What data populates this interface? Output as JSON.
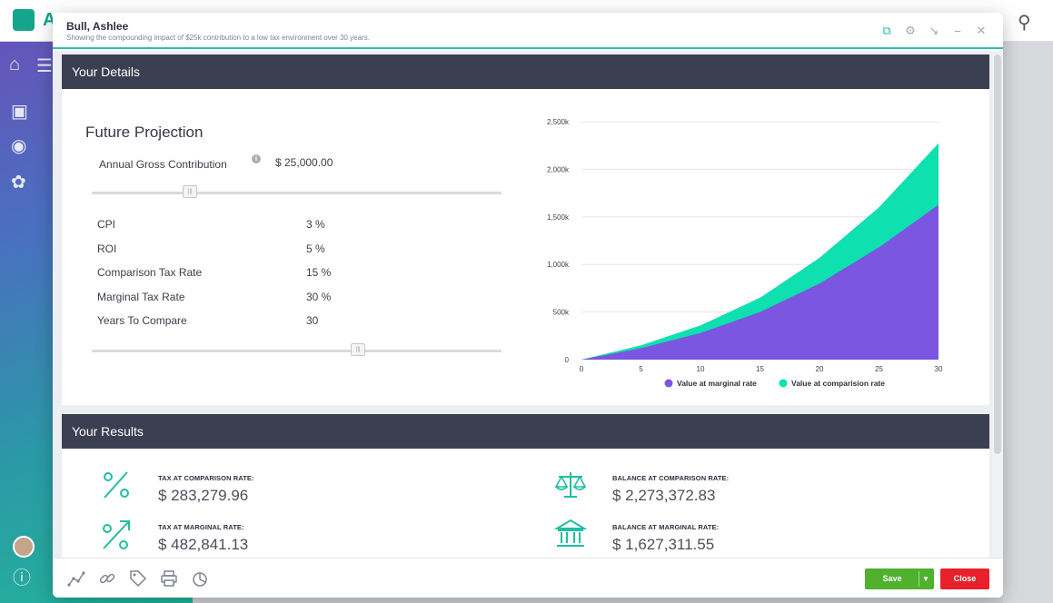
{
  "app": {
    "logo_text": "A"
  },
  "modal": {
    "title": "Bull, Ashlee",
    "subtitle": "Showing the compounding impact of $25k contribution to a low tax environment over 30 years."
  },
  "details": {
    "header": "Your Details",
    "section_title": "Future Projection",
    "agc_label": "Annual Gross Contribution",
    "agc_value": "$ 25,000.00",
    "agc_slider_fraction": 0.24,
    "params": [
      {
        "label": "CPI",
        "value": "3 %"
      },
      {
        "label": "ROI",
        "value": "5 %"
      },
      {
        "label": "Comparison Tax Rate",
        "value": "15 %"
      },
      {
        "label": "Marginal Tax Rate",
        "value": "30 %"
      },
      {
        "label": "Years To Compare",
        "value": "30"
      }
    ],
    "years_slider_fraction": 0.65
  },
  "chart_data": {
    "type": "area",
    "x": [
      0,
      5,
      10,
      15,
      20,
      25,
      30
    ],
    "xlim": [
      0,
      30
    ],
    "ylim": [
      0,
      2500000
    ],
    "y_ticks": [
      "0",
      "500k",
      "1,000k",
      "1,500k",
      "2,000k",
      "2,500k"
    ],
    "y_tick_values": [
      0,
      500000,
      1000000,
      1500000,
      2000000,
      2500000
    ],
    "x_ticks": [
      "0",
      "5",
      "10",
      "15",
      "20",
      "25",
      "30"
    ],
    "grid": true,
    "legend_position": "bottom",
    "series": [
      {
        "name": "Value at marginal rate",
        "color": "#7b56e0",
        "values": [
          0,
          120000,
          280000,
          500000,
          800000,
          1180000,
          1627311
        ]
      },
      {
        "name": "Value at comparision rate",
        "color": "#0fe0b0",
        "values": [
          0,
          150000,
          360000,
          650000,
          1070000,
          1600000,
          2273372
        ]
      }
    ]
  },
  "results": {
    "header": "Your Results",
    "items": [
      {
        "label": "TAX AT COMPARISON RATE:",
        "value": "$ 283,279.96",
        "icon": "percent-icon"
      },
      {
        "label": "TAX AT MARGINAL RATE:",
        "value": "$ 482,841.13",
        "icon": "percent-up-icon"
      },
      {
        "label": "BALANCE AT COMPARISON RATE:",
        "value": "$ 2,273,372.83",
        "icon": "scales-icon"
      },
      {
        "label": "BALANCE AT MARGINAL RATE:",
        "value": "$ 1,627,311.55",
        "icon": "bank-icon"
      }
    ]
  },
  "footer": {
    "save_label": "Save",
    "close_label": "Close"
  },
  "colors": {
    "accent": "#1fbfa0",
    "header_bar": "#3b3f52",
    "save": "#4fb12e",
    "close": "#e8202b"
  }
}
